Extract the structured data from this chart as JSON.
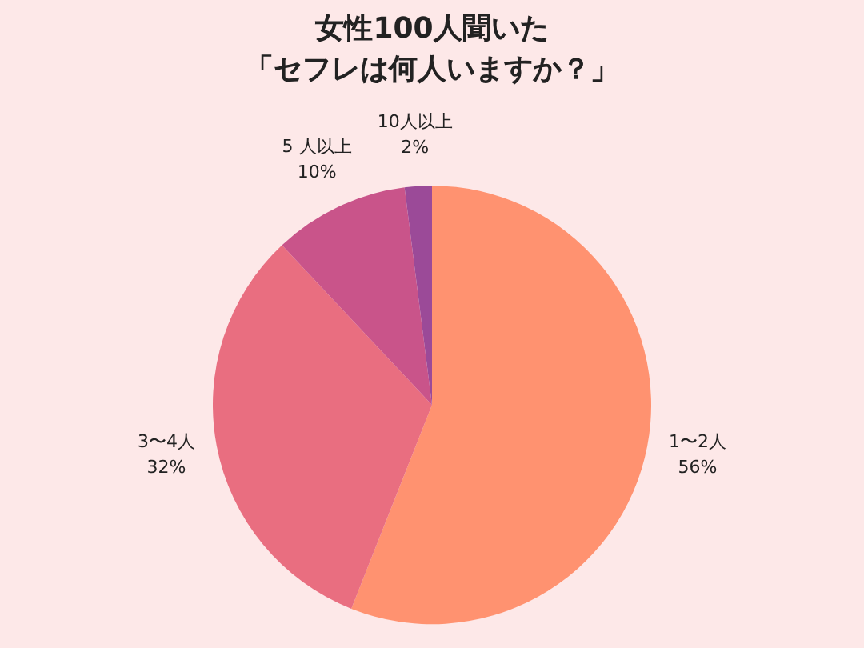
{
  "chart_data": {
    "type": "pie",
    "title": "女性100人聞いた",
    "subtitle": "「セフレは何人いますか？」",
    "categories": [
      "1〜2人",
      "3〜4人",
      "5 人以上",
      "10人以上"
    ],
    "values": [
      56,
      32,
      10,
      2
    ],
    "value_labels": [
      "56%",
      "32%",
      "10%",
      "2%"
    ],
    "colors": [
      "#ff9270",
      "#e96e80",
      "#c9548a",
      "#9b4a98"
    ]
  }
}
